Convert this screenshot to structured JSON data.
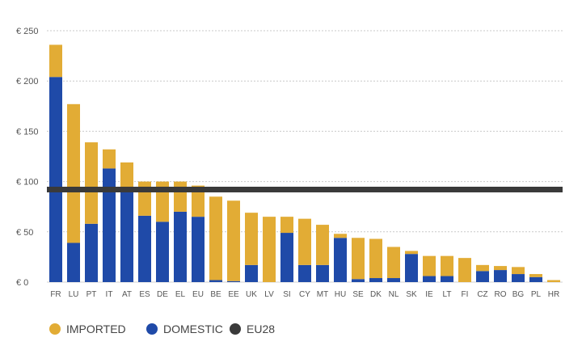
{
  "chart_data": {
    "type": "bar",
    "stacked": true,
    "categories": [
      "FR",
      "LU",
      "PT",
      "IT",
      "AT",
      "ES",
      "DE",
      "EL",
      "EU",
      "BE",
      "EE",
      "UK",
      "LV",
      "SI",
      "CY",
      "MT",
      "HU",
      "SE",
      "DK",
      "NL",
      "SK",
      "IE",
      "LT",
      "FI",
      "CZ",
      "RO",
      "BG",
      "PL",
      "HR"
    ],
    "series": [
      {
        "name": "DOMESTIC",
        "color": "#1f4aa8",
        "values": [
          204,
          39,
          58,
          113,
          91,
          66,
          60,
          70,
          65,
          2,
          1,
          17,
          0,
          49,
          17,
          17,
          44,
          3,
          4,
          4,
          28,
          6,
          6,
          0,
          11,
          12,
          8,
          5,
          0
        ]
      },
      {
        "name": "IMPORTED",
        "color": "#e2ac35",
        "values": [
          32,
          138,
          81,
          19,
          28,
          34,
          40,
          30,
          31,
          83,
          80,
          52,
          65,
          16,
          46,
          40,
          4,
          41,
          39,
          31,
          3,
          20,
          20,
          24,
          6,
          4,
          7,
          3,
          2
        ]
      }
    ],
    "reference_line": {
      "name": "EU28",
      "value": 92,
      "color": "#3a3a3a"
    },
    "y_ticks": [
      "€ 0",
      "€ 50",
      "€ 100",
      "€ 150",
      "€ 200",
      "€ 250"
    ],
    "y_tick_values": [
      0,
      50,
      100,
      150,
      200,
      250
    ],
    "ylim": [
      0,
      250
    ],
    "grid": true,
    "legend": {
      "position": "bottom-left",
      "items": [
        {
          "label": "IMPORTED",
          "color": "#e2ac35"
        },
        {
          "label": "DOMESTIC",
          "color": "#1f4aa8"
        },
        {
          "label": "EU28",
          "color": "#3a3a3a"
        }
      ]
    }
  }
}
